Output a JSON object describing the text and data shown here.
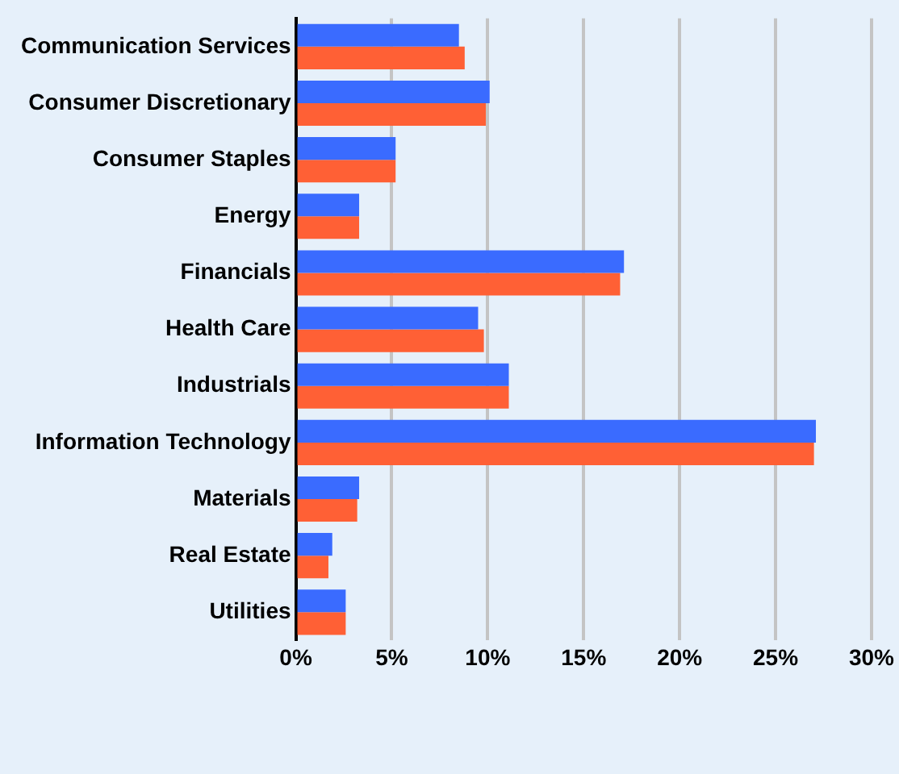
{
  "chart_data": {
    "type": "bar",
    "orientation": "horizontal",
    "categories": [
      "Communication Services",
      "Consumer Discretionary",
      "Consumer Staples",
      "Energy",
      "Financials",
      "Health Care",
      "Industrials",
      "Information Technology",
      "Materials",
      "Real Estate",
      "Utilities"
    ],
    "series": [
      {
        "color": "#3a6bff",
        "values": [
          8.5,
          10.1,
          5.2,
          3.3,
          17.1,
          9.5,
          11.1,
          27.1,
          3.3,
          1.9,
          2.6
        ]
      },
      {
        "color": "#ff6035",
        "values": [
          8.8,
          9.9,
          5.2,
          3.3,
          16.9,
          9.8,
          11.1,
          27.0,
          3.2,
          1.7,
          2.6
        ]
      }
    ],
    "xlim": [
      0,
      30
    ],
    "xticks": [
      {
        "value": 0,
        "label": "0%"
      },
      {
        "value": 5,
        "label": "5%"
      },
      {
        "value": 10,
        "label": "10%"
      },
      {
        "value": 15,
        "label": "15%"
      },
      {
        "value": 20,
        "label": "20%"
      },
      {
        "value": 25,
        "label": "25%"
      },
      {
        "value": 30,
        "label": "30%"
      }
    ],
    "grid": "x"
  }
}
